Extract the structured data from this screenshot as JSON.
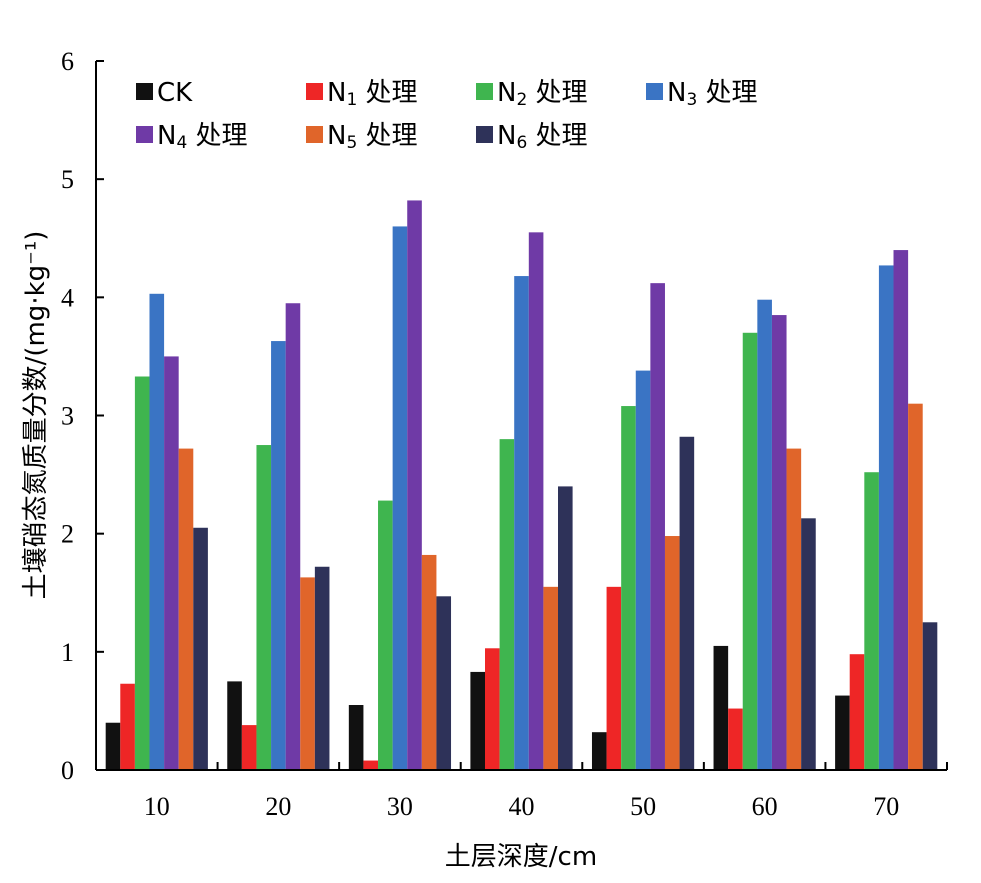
{
  "chart_data": {
    "type": "bar",
    "xlabel": "土层深度/cm",
    "ylabel": "土壤硝态氮质量分数/(mg·kg⁻¹)",
    "ylim": [
      0,
      6
    ],
    "yticks": [
      "0",
      "1",
      "2",
      "3",
      "4",
      "5",
      "6"
    ],
    "categories": [
      "10",
      "20",
      "30",
      "40",
      "50",
      "60",
      "70"
    ],
    "grid": false,
    "legend_position": "top-left",
    "series": [
      {
        "name": "CK",
        "legend": {
          "main": "CK",
          "sub": "",
          "suffix": ""
        },
        "color": "#111111",
        "values": [
          0.4,
          0.75,
          0.55,
          0.83,
          0.32,
          1.05,
          0.63
        ]
      },
      {
        "name": "N1 处理",
        "legend": {
          "main": "N",
          "sub": "1",
          "suffix": " 处理"
        },
        "color": "#ee2626",
        "values": [
          0.73,
          0.38,
          0.08,
          1.03,
          1.55,
          0.52,
          0.98
        ]
      },
      {
        "name": "N2 处理",
        "legend": {
          "main": "N",
          "sub": "2",
          "suffix": " 处理"
        },
        "color": "#3fb54f",
        "values": [
          3.33,
          2.75,
          2.28,
          2.8,
          3.08,
          3.7,
          2.52
        ]
      },
      {
        "name": "N3 处理",
        "legend": {
          "main": "N",
          "sub": "3",
          "suffix": " 处理"
        },
        "color": "#3a74c4",
        "values": [
          4.03,
          3.63,
          4.6,
          4.18,
          3.38,
          3.98,
          4.27
        ]
      },
      {
        "name": "N4 处理",
        "legend": {
          "main": "N",
          "sub": "4",
          "suffix": " 处理"
        },
        "color": "#6f3aa6",
        "values": [
          3.5,
          3.95,
          4.82,
          4.55,
          4.12,
          3.85,
          4.4
        ]
      },
      {
        "name": "N5 处理",
        "legend": {
          "main": "N",
          "sub": "5",
          "suffix": " 处理"
        },
        "color": "#e0652a",
        "values": [
          2.72,
          1.63,
          1.82,
          1.55,
          1.98,
          2.72,
          3.1
        ]
      },
      {
        "name": "N6 处理",
        "legend": {
          "main": "N",
          "sub": "6",
          "suffix": " 处理"
        },
        "color": "#2e3259",
        "values": [
          2.05,
          1.72,
          1.47,
          2.4,
          2.82,
          2.13,
          1.25
        ]
      }
    ]
  }
}
